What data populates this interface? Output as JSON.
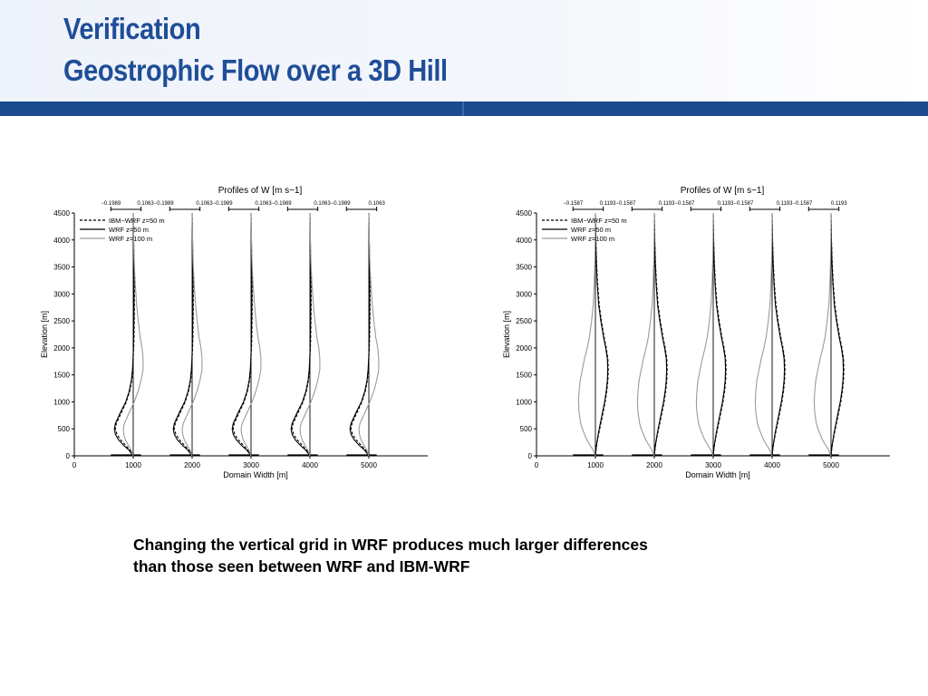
{
  "slide": {
    "title_line1": "Verification",
    "title_line2": "Geostrophic Flow over a 3D Hill",
    "caption_line1": "Changing the vertical grid in WRF produces much larger differences",
    "caption_line2": "than those seen between WRF and IBM-WRF",
    "accent_color": "#1f4e98",
    "bar_color": "#1b4a8e"
  },
  "chart_data": [
    {
      "type": "line",
      "title": "Profiles of W [m s−1]",
      "xlabel": "Domain Width [m]",
      "ylabel": "Elevation [m]",
      "xlim": [
        0,
        6000
      ],
      "ylim": [
        0,
        4500
      ],
      "xticks": [
        0,
        1000,
        2000,
        3000,
        4000,
        5000
      ],
      "yticks": [
        0,
        500,
        1000,
        1500,
        2000,
        2500,
        3000,
        3500,
        4000,
        4500
      ],
      "grid": false,
      "legend": {
        "position": "top-left",
        "entries": [
          {
            "label": "IBM−WRF z=50 m",
            "style": "dashed",
            "color": "#000000"
          },
          {
            "label": "WRF z=50 m",
            "style": "solid",
            "color": "#000000"
          },
          {
            "label": "WRF z=100 m",
            "style": "solid",
            "color": "#9a9a9a"
          }
        ]
      },
      "subplot_scale": {
        "min": -0.1989,
        "max": 0.1063
      },
      "scale_labels": [
        "−0.1989",
        "0.1063−0.1989",
        "0.1063−0.1989",
        "0.1063−0.1989",
        "0.1063−0.1989",
        "0.1063"
      ],
      "profile_centers": [
        1000,
        2000,
        3000,
        4000,
        5000
      ],
      "elevation": [
        0,
        100,
        200,
        300,
        400,
        500,
        600,
        800,
        1000,
        1200,
        1400,
        1600,
        1800,
        2000,
        2200,
        2500,
        2800,
        3200,
        3600,
        4000,
        4500
      ],
      "series": [
        {
          "name": "IBM−WRF z=50 m",
          "values": [
            0,
            -0.03,
            -0.08,
            -0.13,
            -0.165,
            -0.18,
            -0.17,
            -0.12,
            -0.07,
            -0.035,
            -0.015,
            -0.005,
            0,
            0.005,
            0.008,
            0.01,
            0.012,
            0.012,
            0.009,
            0.005,
            0
          ]
        },
        {
          "name": "WRF z=50 m",
          "values": [
            0,
            -0.04,
            -0.1,
            -0.15,
            -0.18,
            -0.19,
            -0.18,
            -0.13,
            -0.075,
            -0.04,
            -0.018,
            -0.007,
            -0.002,
            0.002,
            0.004,
            0.006,
            0.007,
            0.007,
            0.005,
            0.003,
            0
          ]
        },
        {
          "name": "WRF z=100 m",
          "values": [
            0,
            -0.02,
            -0.05,
            -0.08,
            -0.095,
            -0.1,
            -0.09,
            -0.04,
            0.01,
            0.05,
            0.08,
            0.1,
            0.1,
            0.09,
            0.07,
            0.05,
            0.035,
            0.02,
            0.01,
            0.005,
            0
          ]
        }
      ]
    },
    {
      "type": "line",
      "title": "Profiles of W [m s−1]",
      "xlabel": "Domain Width [m]",
      "ylabel": "Elevation [m]",
      "xlim": [
        0,
        6000
      ],
      "ylim": [
        0,
        4500
      ],
      "xticks": [
        0,
        1000,
        2000,
        3000,
        4000,
        5000
      ],
      "yticks": [
        0,
        500,
        1000,
        1500,
        2000,
        2500,
        3000,
        3500,
        4000,
        4500
      ],
      "grid": false,
      "legend": {
        "position": "top-left",
        "entries": [
          {
            "label": "IBM−WRF z=50 m",
            "style": "dashed",
            "color": "#000000"
          },
          {
            "label": "WRF z=50 m",
            "style": "solid",
            "color": "#000000"
          },
          {
            "label": "WRF z=100 m",
            "style": "solid",
            "color": "#9a9a9a"
          }
        ]
      },
      "subplot_scale": {
        "min": -0.1587,
        "max": 0.1193
      },
      "scale_labels": [
        "−0.1587",
        "0.1193−0.1587",
        "0.1193−0.1587",
        "0.1193−0.1587",
        "0.1193−0.1587",
        "0.1193"
      ],
      "profile_centers": [
        1000,
        2000,
        3000,
        4000,
        5000
      ],
      "elevation": [
        0,
        100,
        200,
        300,
        400,
        500,
        600,
        800,
        1000,
        1200,
        1400,
        1600,
        1800,
        2000,
        2200,
        2500,
        2800,
        3200,
        3600,
        4000,
        4500
      ],
      "series": [
        {
          "name": "IBM−WRF z=50 m",
          "values": [
            0,
            0.005,
            0.012,
            0.02,
            0.03,
            0.04,
            0.05,
            0.07,
            0.09,
            0.105,
            0.115,
            0.118,
            0.115,
            0.1,
            0.08,
            0.055,
            0.035,
            0.02,
            0.01,
            0.004,
            0
          ]
        },
        {
          "name": "WRF z=50 m",
          "values": [
            0,
            0.004,
            0.01,
            0.018,
            0.026,
            0.035,
            0.045,
            0.065,
            0.085,
            0.1,
            0.11,
            0.113,
            0.11,
            0.095,
            0.075,
            0.05,
            0.03,
            0.017,
            0.008,
            0.003,
            0
          ]
        },
        {
          "name": "WRF z=100 m",
          "values": [
            0,
            -0.02,
            -0.05,
            -0.08,
            -0.1,
            -0.12,
            -0.135,
            -0.15,
            -0.155,
            -0.15,
            -0.14,
            -0.12,
            -0.1,
            -0.075,
            -0.055,
            -0.035,
            -0.02,
            -0.01,
            -0.005,
            -0.002,
            0
          ]
        }
      ]
    }
  ]
}
